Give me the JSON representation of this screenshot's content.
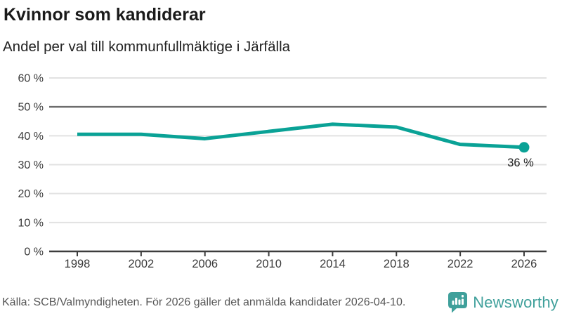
{
  "chart_data": {
    "type": "line",
    "title": "Kvinnor som kandiderar",
    "subtitle": "Andel per val till kommunfullmäktige i Järfälla",
    "x": [
      "1998",
      "2002",
      "2006",
      "2010",
      "2014",
      "2018",
      "2022",
      "2026"
    ],
    "values": [
      40.5,
      40.5,
      39,
      41.5,
      44,
      43,
      37,
      36
    ],
    "end_label": "36 %",
    "yticks": [
      "0 %",
      "10 %",
      "20 %",
      "30 %",
      "40 %",
      "50 %",
      "60 %"
    ],
    "ytick_values": [
      0,
      10,
      20,
      30,
      40,
      50,
      60
    ],
    "ylim": [
      0,
      60
    ],
    "reference_line_y": 50,
    "grid": true,
    "legend_position": "none",
    "xlabel": "",
    "ylabel": ""
  },
  "footer": {
    "source": "Källa: SCB/Valmyndigheten. För 2026 gäller det anmälda kandidater 2026-04-10.",
    "brand": "Newsworthy"
  },
  "colors": {
    "line": "#0aa296",
    "reference_line": "#6d6d6d",
    "gridline": "#e2e2e2",
    "axis": "#3d3d3d",
    "tick_text": "#3a3a3a",
    "value_label_text": "#222222",
    "brand_teal": "#3fa09b"
  }
}
